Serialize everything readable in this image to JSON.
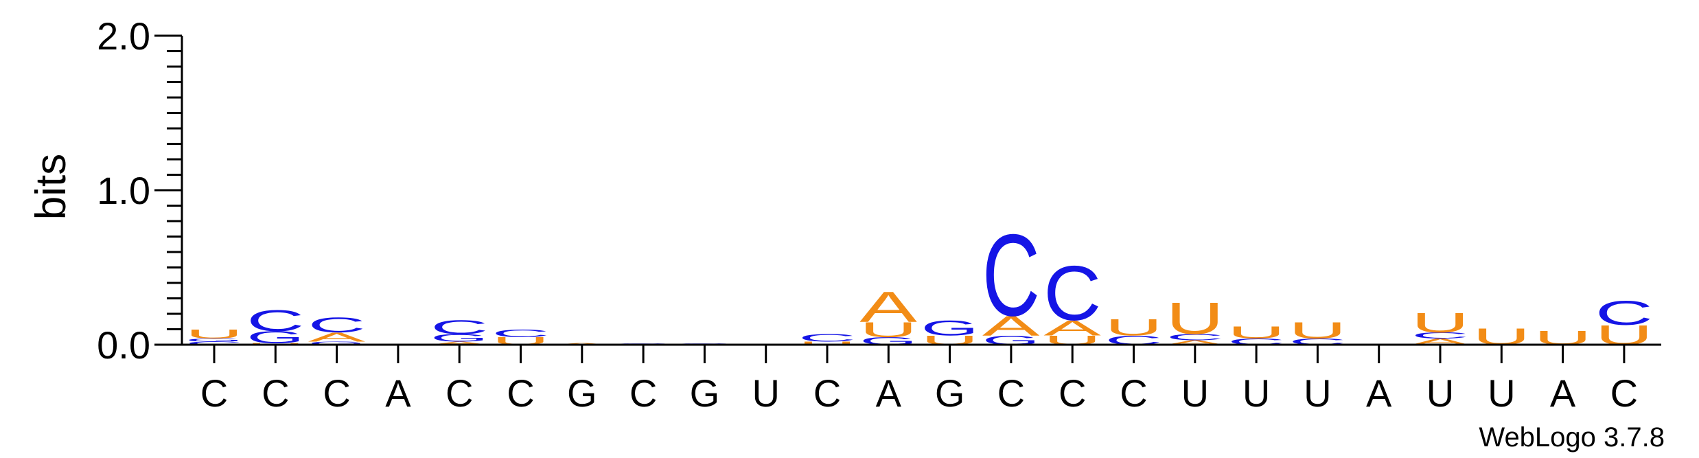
{
  "chart_data": {
    "type": "sequence-logo",
    "ylabel": "bits",
    "ylim": [
      0,
      2.0
    ],
    "yticks": [
      {
        "value": 0.0,
        "label": "0.0"
      },
      {
        "value": 1.0,
        "label": "1.0"
      },
      {
        "value": 2.0,
        "label": "2.0"
      }
    ],
    "colors": {
      "A": "#f28c16",
      "U": "#f28c16",
      "C": "#1515e6",
      "G": "#1515e6"
    },
    "positions": [
      {
        "label": "C",
        "stack": [
          [
            "C",
            0.02
          ],
          [
            "G",
            0.02
          ],
          [
            "U",
            0.06
          ]
        ]
      },
      {
        "label": "C",
        "stack": [
          [
            "U",
            0.01
          ],
          [
            "G",
            0.08
          ],
          [
            "C",
            0.14
          ]
        ]
      },
      {
        "label": "C",
        "stack": [
          [
            "G",
            0.02
          ],
          [
            "A",
            0.06
          ],
          [
            "C",
            0.1
          ]
        ]
      },
      {
        "label": "A",
        "stack": []
      },
      {
        "label": "C",
        "stack": [
          [
            "A",
            0.02
          ],
          [
            "G",
            0.05
          ],
          [
            "C",
            0.09
          ]
        ]
      },
      {
        "label": "C",
        "stack": [
          [
            "U",
            0.05
          ],
          [
            "C",
            0.05
          ]
        ]
      },
      {
        "label": "G",
        "stack": [
          [
            "A",
            0.01
          ]
        ]
      },
      {
        "label": "C",
        "stack": [
          [
            "G",
            0.01
          ]
        ]
      },
      {
        "label": "G",
        "stack": [
          [
            "G",
            0.01
          ]
        ]
      },
      {
        "label": "U",
        "stack": []
      },
      {
        "label": "C",
        "stack": [
          [
            "U",
            0.02
          ],
          [
            "C",
            0.05
          ]
        ]
      },
      {
        "label": "A",
        "stack": [
          [
            "G",
            0.05
          ],
          [
            "U",
            0.1
          ],
          [
            "A",
            0.2
          ]
        ]
      },
      {
        "label": "G",
        "stack": [
          [
            "U",
            0.06
          ],
          [
            "G",
            0.1
          ]
        ]
      },
      {
        "label": "C",
        "stack": [
          [
            "G",
            0.06
          ],
          [
            "A",
            0.13
          ],
          [
            "C",
            0.54
          ]
        ]
      },
      {
        "label": "C",
        "stack": [
          [
            "U",
            0.06
          ],
          [
            "A",
            0.1
          ],
          [
            "C",
            0.36
          ]
        ]
      },
      {
        "label": "C",
        "stack": [
          [
            "C",
            0.06
          ],
          [
            "U",
            0.11
          ]
        ]
      },
      {
        "label": "U",
        "stack": [
          [
            "A",
            0.03
          ],
          [
            "C",
            0.04
          ],
          [
            "U",
            0.21
          ]
        ]
      },
      {
        "label": "U",
        "stack": [
          [
            "C",
            0.04
          ],
          [
            "U",
            0.08
          ]
        ]
      },
      {
        "label": "U",
        "stack": [
          [
            "C",
            0.04
          ],
          [
            "U",
            0.11
          ]
        ]
      },
      {
        "label": "A",
        "stack": []
      },
      {
        "label": "U",
        "stack": [
          [
            "A",
            0.04
          ],
          [
            "C",
            0.04
          ],
          [
            "U",
            0.13
          ]
        ]
      },
      {
        "label": "U",
        "stack": [
          [
            "U",
            0.11
          ]
        ]
      },
      {
        "label": "A",
        "stack": [
          [
            "U",
            0.09
          ]
        ]
      },
      {
        "label": "C",
        "stack": [
          [
            "U",
            0.13
          ],
          [
            "C",
            0.16
          ]
        ]
      }
    ],
    "footer": "WebLogo 3.7.8"
  }
}
